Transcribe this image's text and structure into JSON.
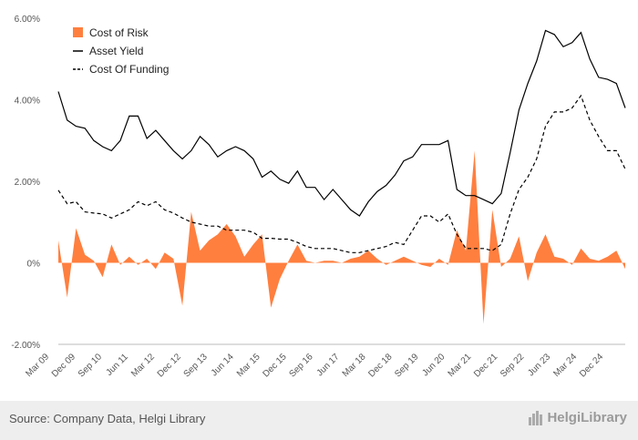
{
  "chart_data": {
    "type": "line",
    "legend_position": "top-left",
    "grid": false,
    "ylim": [
      -2,
      6
    ],
    "y_ticks": [
      "6.00%",
      "4.00%",
      "2.00%",
      "0%",
      "-2.00%"
    ],
    "y_tick_values": [
      6,
      4,
      2,
      0,
      -2
    ],
    "x_labels": [
      "Mar 09",
      "Dec 09",
      "Sep 10",
      "Jun 11",
      "Mar 12",
      "Dec 12",
      "Sep 13",
      "Jun 14",
      "Mar 15",
      "Dec 15",
      "Sep 16",
      "Jun 17",
      "Mar 18",
      "Dec 18",
      "Sep 19",
      "Jun 20",
      "Mar 21",
      "Dec 21",
      "Sep 22",
      "Jun 23",
      "Mar 24",
      "Dec 24"
    ],
    "series": [
      {
        "name": "Cost of Risk",
        "style": "area",
        "color": "#ff7f3f",
        "values": [
          0.55,
          -0.85,
          0.85,
          0.2,
          0.05,
          -0.35,
          0.45,
          -0.05,
          0.15,
          -0.05,
          0.1,
          -0.15,
          0.25,
          0.1,
          -1.05,
          1.25,
          0.3,
          0.55,
          0.7,
          0.95,
          0.65,
          0.15,
          0.45,
          0.7,
          -1.1,
          -0.4,
          0.05,
          0.45,
          0.05,
          0.0,
          0.05,
          0.05,
          0.0,
          0.1,
          0.15,
          0.3,
          0.1,
          -0.05,
          0.05,
          0.15,
          0.05,
          -0.05,
          -0.1,
          0.1,
          -0.05,
          0.8,
          0.3,
          2.75,
          -1.5,
          1.3,
          -0.1,
          0.1,
          0.65,
          -0.45,
          0.25,
          0.7,
          0.15,
          0.1,
          -0.05,
          0.35,
          0.1,
          0.05,
          0.15,
          0.3,
          -0.15
        ]
      },
      {
        "name": "Asset Yield",
        "style": "solid",
        "color": "#000000",
        "values": [
          4.2,
          3.5,
          3.35,
          3.3,
          3.0,
          2.85,
          2.75,
          3.0,
          3.6,
          3.6,
          3.05,
          3.25,
          3.0,
          2.75,
          2.55,
          2.75,
          3.1,
          2.9,
          2.6,
          2.75,
          2.85,
          2.75,
          2.55,
          2.1,
          2.25,
          2.05,
          1.95,
          2.25,
          1.85,
          1.85,
          1.55,
          1.8,
          1.55,
          1.3,
          1.15,
          1.5,
          1.75,
          1.9,
          2.15,
          2.5,
          2.6,
          2.9,
          2.9,
          2.9,
          3.0,
          1.8,
          1.65,
          1.65,
          1.55,
          1.45,
          1.7,
          2.7,
          3.75,
          4.4,
          4.95,
          5.7,
          5.6,
          5.3,
          5.4,
          5.65,
          5.0,
          4.55,
          4.5,
          4.4,
          3.8
        ]
      },
      {
        "name": "Cost Of Funding",
        "style": "dashed",
        "color": "#000000",
        "values": [
          1.78,
          1.45,
          1.5,
          1.25,
          1.22,
          1.2,
          1.1,
          1.2,
          1.3,
          1.5,
          1.4,
          1.5,
          1.3,
          1.22,
          1.1,
          1.0,
          0.95,
          0.9,
          0.9,
          0.8,
          0.8,
          0.8,
          0.75,
          0.6,
          0.6,
          0.58,
          0.58,
          0.5,
          0.4,
          0.35,
          0.35,
          0.35,
          0.3,
          0.25,
          0.25,
          0.3,
          0.35,
          0.4,
          0.5,
          0.45,
          0.8,
          1.15,
          1.15,
          1.0,
          1.2,
          0.7,
          0.35,
          0.35,
          0.35,
          0.3,
          0.45,
          1.2,
          1.8,
          2.1,
          2.55,
          3.35,
          3.7,
          3.7,
          3.8,
          4.1,
          3.5,
          3.1,
          2.75,
          2.75,
          2.3
        ]
      }
    ]
  },
  "footer": {
    "source": "Source: Company Data, Helgi Library",
    "brand": "HelgiLibrary"
  }
}
